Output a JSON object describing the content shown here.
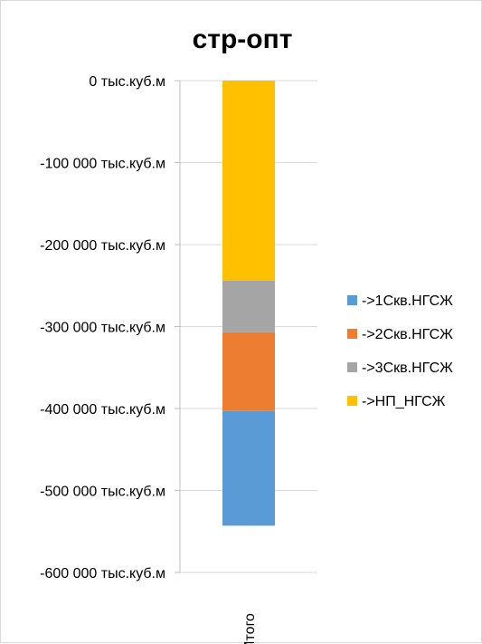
{
  "chart_data": {
    "type": "bar",
    "stacked": true,
    "title": "стр-опт",
    "xlabel": "",
    "ylabel": "",
    "categories": [
      "Итого"
    ],
    "ylim": [
      -600000,
      0
    ],
    "yticks": [
      {
        "value": 0,
        "label": "0 тыс.куб.м"
      },
      {
        "value": -100000,
        "label": "-100 000 тыс.куб.м"
      },
      {
        "value": -200000,
        "label": "-200 000 тыс.куб.м"
      },
      {
        "value": -300000,
        "label": "-300 000 тыс.куб.м"
      },
      {
        "value": -400000,
        "label": "-400 000 тыс.куб.м"
      },
      {
        "value": -500000,
        "label": "-500 000 тыс.куб.м"
      },
      {
        "value": -600000,
        "label": "-600 000 тыс.куб.м"
      }
    ],
    "series": [
      {
        "name": "->1Скв.НГСЖ",
        "color": "#5b9bd5",
        "values": [
          -140000
        ]
      },
      {
        "name": "->2Скв.НГСЖ",
        "color": "#ed7d31",
        "values": [
          -96000
        ]
      },
      {
        "name": "->3Скв.НГСЖ",
        "color": "#a5a5a5",
        "values": [
          -63000
        ]
      },
      {
        "name": "->НП_НГСЖ",
        "color": "#ffc000",
        "values": [
          -244000
        ]
      }
    ],
    "legend_position": "right",
    "grid": true
  }
}
